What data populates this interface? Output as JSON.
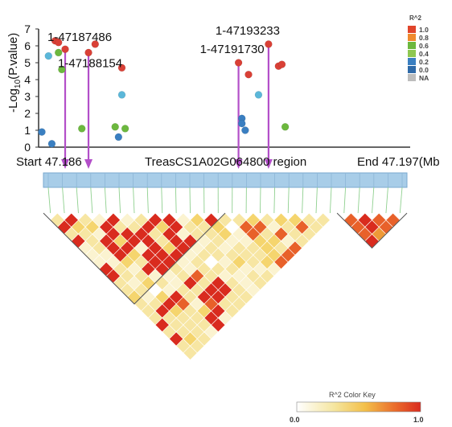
{
  "chart_data": [
    {
      "type": "scatter",
      "ylabel_main": "-Log",
      "ylabel_sub": "10",
      "ylabel_tail": "(P.value)",
      "yticks": [
        "0",
        "1",
        "2",
        "3",
        "4",
        "5",
        "6",
        "7"
      ],
      "ylim": [
        0,
        7
      ],
      "xlim": [
        47.186,
        47.197
      ],
      "x_labels": {
        "start": "Start 47.186",
        "region": "TreasCS1A02G064800 region",
        "end": "End 47.197(Mb"
      },
      "points": [
        {
          "x": 47.186,
          "y": 0.9,
          "r2_bin": "0.2"
        },
        {
          "x": 47.1862,
          "y": 5.4,
          "r2_bin": "0.2"
        },
        {
          "x": 47.1863,
          "y": 0.2,
          "r2_bin": "0.2"
        },
        {
          "x": 47.1864,
          "y": 6.3,
          "r2_bin": "1.0"
        },
        {
          "x": 47.1865,
          "y": 6.2,
          "r2_bin": "1.0"
        },
        {
          "x": 47.1865,
          "y": 5.6,
          "r2_bin": "0.6"
        },
        {
          "x": 47.1866,
          "y": 4.6,
          "r2_bin": "0.6"
        },
        {
          "x": 47.1867,
          "y": 5.8,
          "r2_bin": "1.0"
        },
        {
          "x": 47.1872,
          "y": 1.1,
          "r2_bin": "0.6"
        },
        {
          "x": 47.1874,
          "y": 5.6,
          "r2_bin": "1.0"
        },
        {
          "x": 47.1876,
          "y": 6.1,
          "r2_bin": "1.0"
        },
        {
          "x": 47.1882,
          "y": 1.2,
          "r2_bin": "0.6"
        },
        {
          "x": 47.1883,
          "y": 0.6,
          "r2_bin": "0.2"
        },
        {
          "x": 47.1884,
          "y": 3.1,
          "r2_bin": "0.2"
        },
        {
          "x": 47.1884,
          "y": 4.7,
          "r2_bin": "1.0"
        },
        {
          "x": 47.1885,
          "y": 1.1,
          "r2_bin": "0.6"
        },
        {
          "x": 47.1919,
          "y": 5.0,
          "r2_bin": "1.0"
        },
        {
          "x": 47.192,
          "y": 1.7,
          "r2_bin": "0.2"
        },
        {
          "x": 47.192,
          "y": 1.4,
          "r2_bin": "0.2"
        },
        {
          "x": 47.1921,
          "y": 1.0,
          "r2_bin": "0.2"
        },
        {
          "x": 47.1922,
          "y": 4.3,
          "r2_bin": "1.0"
        },
        {
          "x": 47.1925,
          "y": 3.1,
          "r2_bin": "0.2"
        },
        {
          "x": 47.1928,
          "y": 6.1,
          "r2_bin": "1.0"
        },
        {
          "x": 47.1931,
          "y": 4.8,
          "r2_bin": "1.0"
        },
        {
          "x": 47.1932,
          "y": 4.9,
          "r2_bin": "1.0"
        },
        {
          "x": 47.1933,
          "y": 1.2,
          "r2_bin": "0.6"
        }
      ],
      "annotations": [
        {
          "text": "1-47187486",
          "x": 47.1867
        },
        {
          "text": "1-47188154",
          "x": 47.1874
        },
        {
          "text": "1-47191730",
          "x": 47.1919
        },
        {
          "text": "1-47193233",
          "x": 47.1928
        }
      ],
      "legend": {
        "title": "R^2",
        "entries": [
          {
            "label": "1.0",
            "color": "#e0452b"
          },
          {
            "label": "0.8",
            "color": "#f08a2e"
          },
          {
            "label": "0.6",
            "color": "#6cb83e"
          },
          {
            "label": "0.4",
            "color": "#8fc751"
          },
          {
            "label": "0.2",
            "color": "#3a7fc1"
          },
          {
            "label": "0.0",
            "color": "#2f6aa8"
          },
          {
            "label": "NA",
            "color": "#bdbdbd"
          }
        ],
        "position": "top-right"
      },
      "colors": {
        "arrow": "#b34fc9",
        "r2_1": "#d94036",
        "r2_06": "#6cb83e",
        "r2_02": "#3a7fc1",
        "r2_02_light": "#5bb7d9"
      }
    },
    {
      "type": "heatmap",
      "title": "R^2 Color Key",
      "key_min": "0.0",
      "key_max": "1.0",
      "scale_colors": [
        "#ffffff",
        "#f5e6a0",
        "#f3c04a",
        "#ea6a2b",
        "#d92b1e"
      ]
    }
  ]
}
